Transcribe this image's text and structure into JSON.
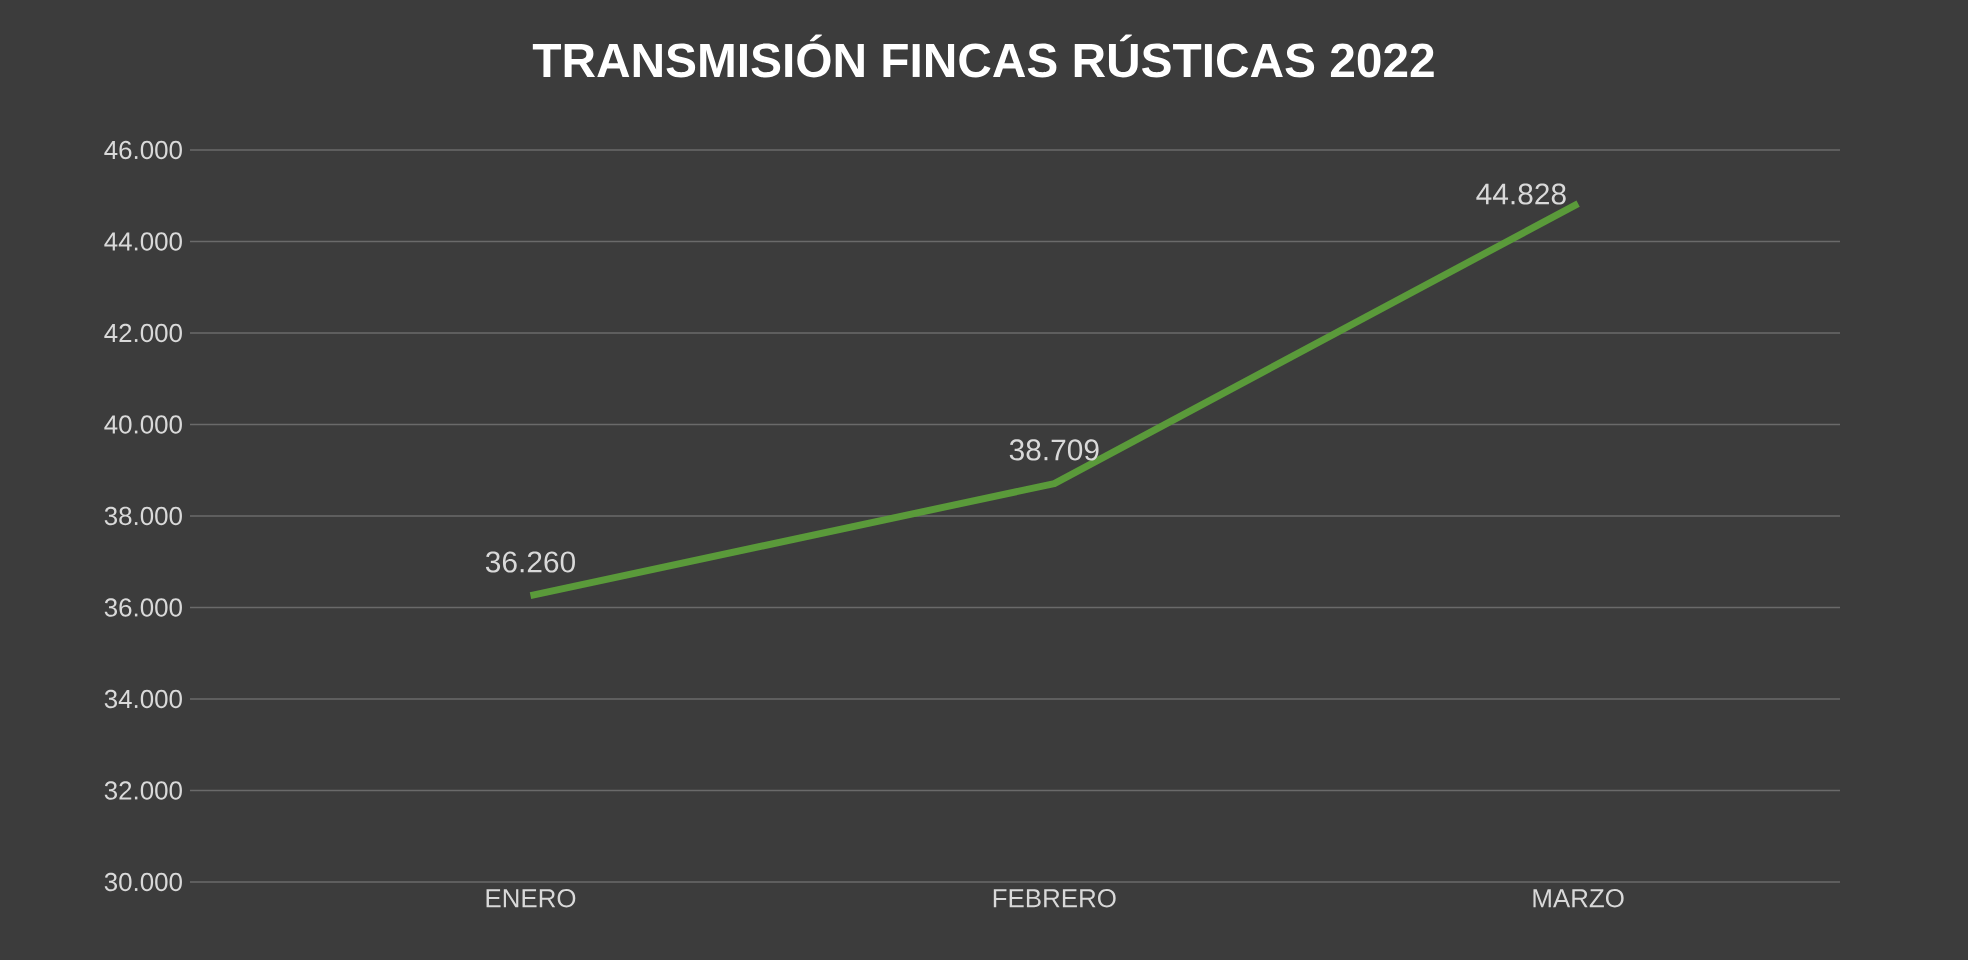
{
  "chart_data": {
    "type": "line",
    "title": "TRANSMISIÓN FINCAS RÚSTICAS 2022",
    "categories": [
      "ENERO",
      "FEBRERO",
      "MARZO"
    ],
    "series": [
      {
        "color": "#5a9a3a",
        "values": [
          36260,
          38709,
          44828
        ],
        "value_labels": [
          "36.260",
          "38.709",
          "44.828"
        ]
      }
    ],
    "ylim": [
      30000,
      46000
    ],
    "yticks": [
      {
        "value": 30000,
        "label": "30.000"
      },
      {
        "value": 32000,
        "label": "32.000"
      },
      {
        "value": 34000,
        "label": "34.000"
      },
      {
        "value": 36000,
        "label": "36.000"
      },
      {
        "value": 38000,
        "label": "38.000"
      },
      {
        "value": 40000,
        "label": "40.000"
      },
      {
        "value": 42000,
        "label": "42.000"
      },
      {
        "value": 44000,
        "label": "44.000"
      },
      {
        "value": 46000,
        "label": "46.000"
      }
    ],
    "grid": "y",
    "marker": "none",
    "line_style": "solid"
  }
}
